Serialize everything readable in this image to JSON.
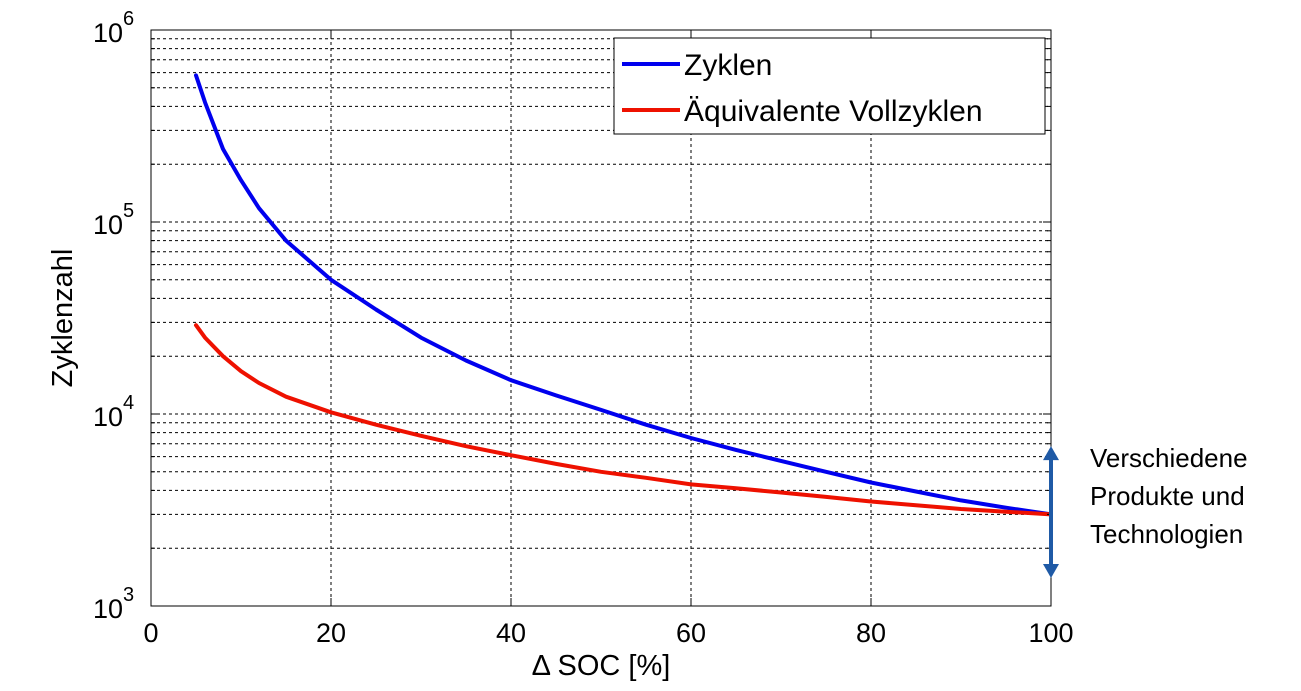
{
  "chart_data": {
    "type": "line",
    "xlabel": "Δ SOC [%]",
    "ylabel": "Zyklenzahl",
    "xlim": [
      0,
      100
    ],
    "ylim": [
      1000,
      1000000
    ],
    "yscale": "log",
    "grid": true,
    "legend_position": "top-right",
    "x_ticks": [
      "0",
      "20",
      "40",
      "60",
      "80",
      "100"
    ],
    "y_ticks": [
      {
        "base": "10",
        "exp": "3"
      },
      {
        "base": "10",
        "exp": "4"
      },
      {
        "base": "10",
        "exp": "5"
      },
      {
        "base": "10",
        "exp": "6"
      }
    ],
    "series": [
      {
        "name": "Zyklen",
        "color": "#0000ee",
        "x": [
          5,
          6,
          8,
          10,
          12,
          15,
          20,
          25,
          30,
          35,
          40,
          45,
          50,
          55,
          60,
          65,
          70,
          75,
          80,
          85,
          90,
          95,
          100
        ],
        "y": [
          580000,
          420000,
          240000,
          165000,
          118000,
          80000,
          50000,
          35000,
          25000,
          19000,
          15000,
          12500,
          10500,
          8800,
          7500,
          6500,
          5700,
          5000,
          4400,
          3950,
          3550,
          3250,
          3000
        ]
      },
      {
        "name": "Äquivalente Vollzyklen",
        "color": "#ee1100",
        "x": [
          5,
          6,
          8,
          10,
          12,
          15,
          20,
          25,
          30,
          35,
          40,
          45,
          50,
          55,
          60,
          65,
          70,
          75,
          80,
          85,
          90,
          95,
          100
        ],
        "y": [
          29000,
          25000,
          20000,
          16700,
          14500,
          12300,
          10200,
          8800,
          7700,
          6800,
          6100,
          5500,
          5000,
          4650,
          4300,
          4100,
          3900,
          3700,
          3500,
          3350,
          3200,
          3100,
          3000
        ]
      }
    ],
    "annotation": {
      "lines": [
        "Verschiedene",
        "Produkte und",
        "Technologien"
      ],
      "arrow_color": "#1f5aa6",
      "arrow_range": [
        1400,
        6800
      ]
    }
  }
}
